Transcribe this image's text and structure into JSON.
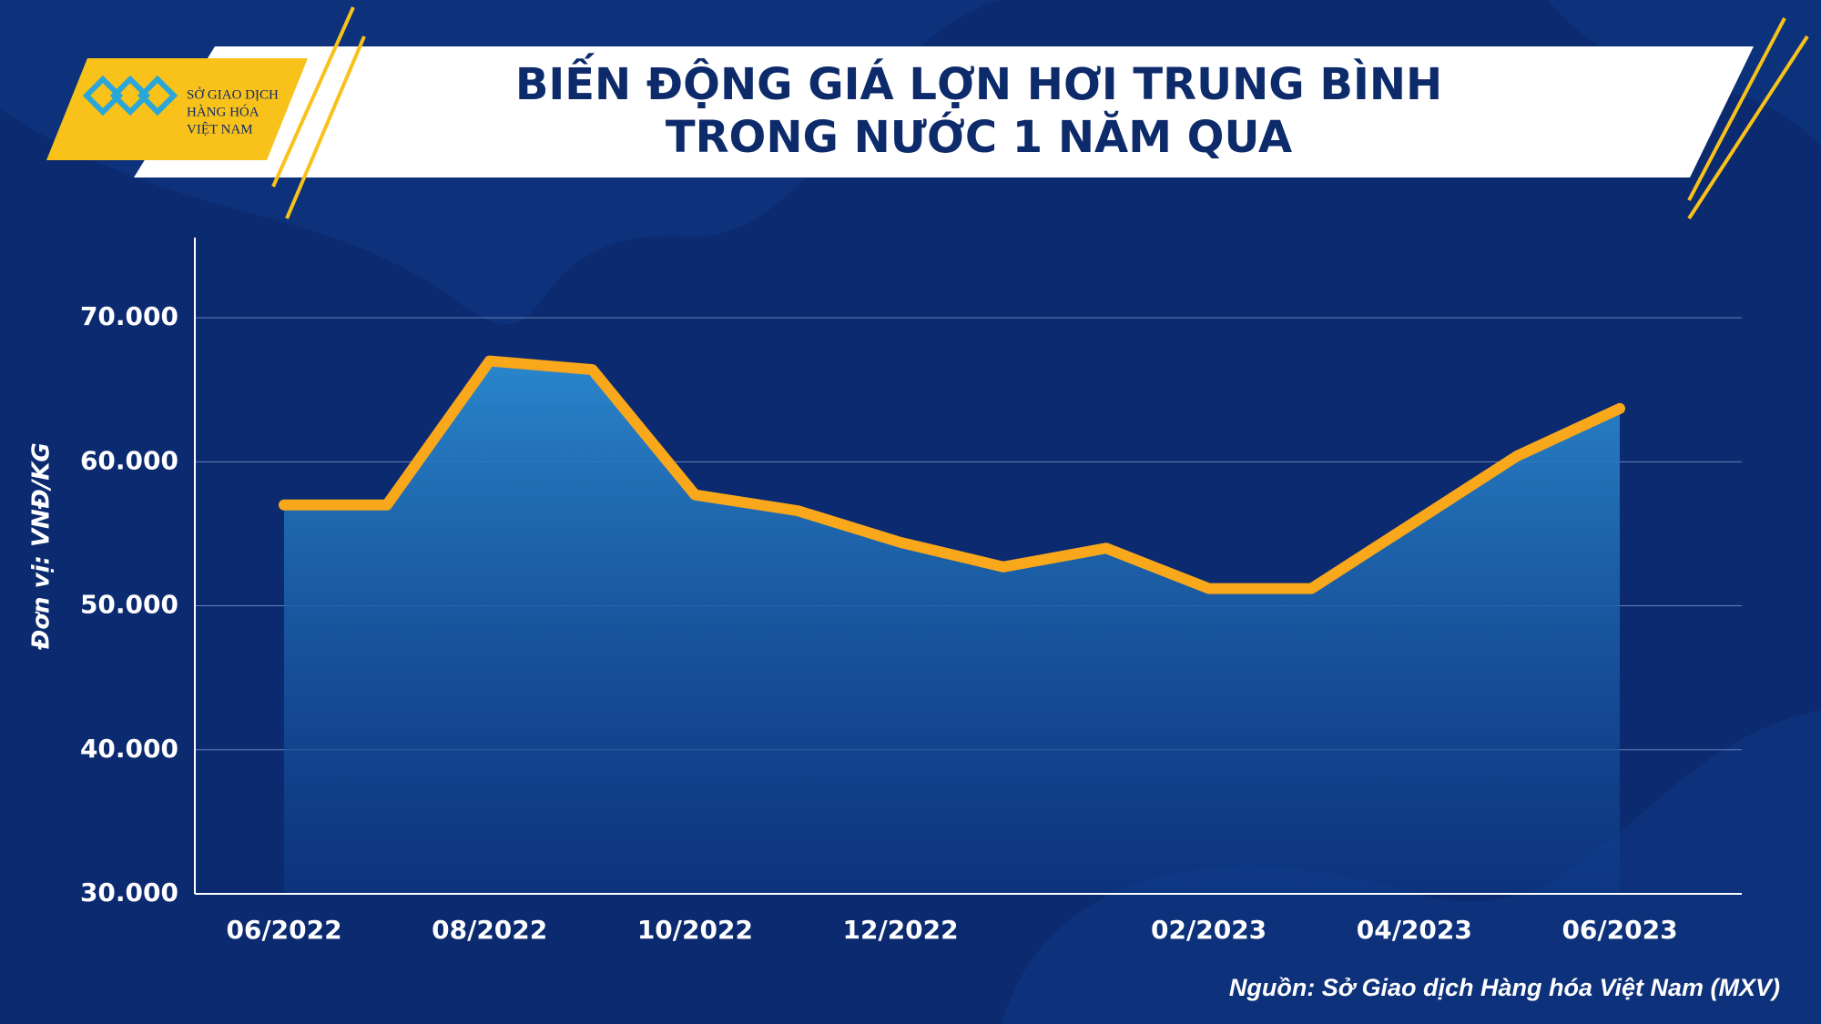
{
  "logo": {
    "lines": [
      "SỞ GIAO DỊCH",
      "HÀNG HÓA",
      "VIỆT NAM"
    ]
  },
  "chart_data": {
    "type": "area-line",
    "title": [
      "BIẾN ĐỘNG GIÁ LỢN HƠI TRUNG BÌNH",
      "TRONG NƯỚC 1 NĂM QUA"
    ],
    "y_label": "Đơn vị: VNĐ/KG",
    "source": "Nguồn: Sở Giao dịch Hàng hóa Việt Nam (MXV)",
    "categories": [
      "06/2022",
      null,
      "08/2022",
      null,
      "10/2022",
      null,
      "12/2022",
      null,
      null,
      "02/2023",
      null,
      "04/2023",
      null,
      "06/2023"
    ],
    "values": [
      57000,
      57000,
      67000,
      66400,
      57700,
      56600,
      54400,
      52700,
      54000,
      51200,
      51200,
      55800,
      60400,
      63700
    ],
    "color": "#f9a81b",
    "ylim": [
      30000,
      75000
    ],
    "yticks": [
      {
        "value": 30000,
        "label": "30.000"
      },
      {
        "value": 40000,
        "label": "40.000"
      },
      {
        "value": 50000,
        "label": "50.000"
      },
      {
        "value": 60000,
        "label": "60.000"
      },
      {
        "value": 70000,
        "label": "70.000"
      }
    ],
    "grid": true
  }
}
